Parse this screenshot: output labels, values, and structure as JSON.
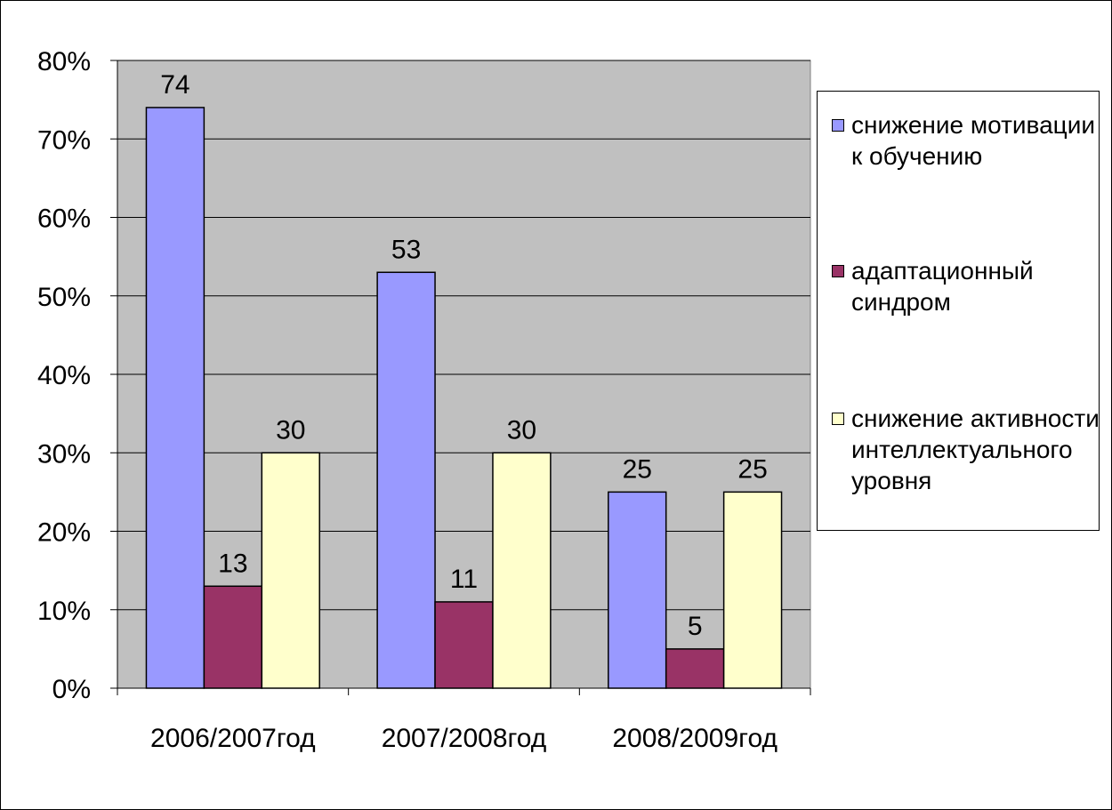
{
  "chart_data": {
    "type": "bar",
    "categories": [
      "2006/2007год",
      "2007/2008год",
      "2008/2009год"
    ],
    "series": [
      {
        "name": "снижение мотивации к обучению",
        "color": "#9999ff",
        "values": [
          74,
          53,
          25
        ],
        "labels": [
          "74",
          "53",
          "25"
        ]
      },
      {
        "name": "адаптационный синдром",
        "color": "#993366",
        "values": [
          13,
          11,
          5
        ],
        "labels": [
          "13",
          "11",
          "5"
        ]
      },
      {
        "name": "снижение активности интеллектуального уровня",
        "color": "#ffffcc",
        "values": [
          30,
          30,
          25
        ],
        "labels": [
          "30",
          "30",
          "25"
        ]
      }
    ],
    "ylim": [
      0,
      80
    ],
    "yticks": [
      0,
      10,
      20,
      30,
      40,
      50,
      60,
      70,
      80
    ],
    "ytick_labels": [
      "0%",
      "10%",
      "20%",
      "30%",
      "40%",
      "50%",
      "60%",
      "70%",
      "80%"
    ],
    "plot_background": "#c0c0c0",
    "grid": true,
    "legend_position": "right",
    "title": "",
    "xlabel": "",
    "ylabel": ""
  }
}
